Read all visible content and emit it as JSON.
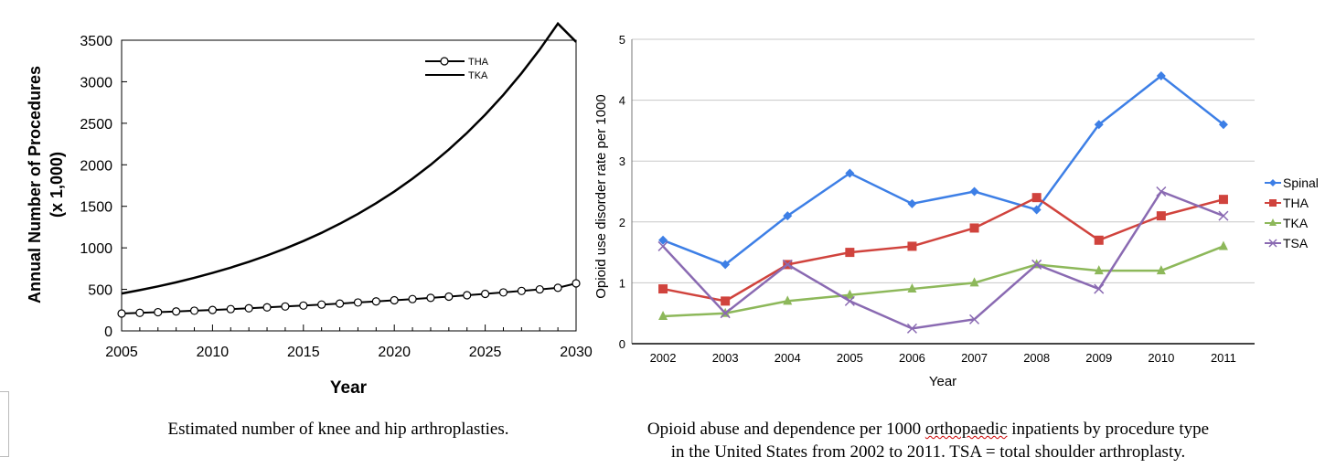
{
  "chart_data": [
    {
      "type": "line",
      "title": "",
      "xlabel": "Year",
      "ylabel": "Annual Number of Procedures",
      "ylabel2": "(x 1,000)",
      "xlim": [
        2005,
        2030
      ],
      "ylim": [
        0,
        3500
      ],
      "xticks": [
        "2005",
        "2010",
        "2015",
        "2020",
        "2025",
        "2030"
      ],
      "yticks": [
        "0",
        "500",
        "1000",
        "1500",
        "2000",
        "2500",
        "3000",
        "3500"
      ],
      "legend": "top-center",
      "grid": false,
      "x": [
        2005,
        2006,
        2007,
        2008,
        2009,
        2010,
        2011,
        2012,
        2013,
        2014,
        2015,
        2016,
        2017,
        2018,
        2019,
        2020,
        2021,
        2022,
        2023,
        2024,
        2025,
        2026,
        2027,
        2028,
        2029,
        2030
      ],
      "series": [
        {
          "name": "THA",
          "marker": "open-circle",
          "color": "#000000",
          "values": [
            209,
            217,
            225,
            234,
            243,
            252,
            262,
            272,
            283,
            294,
            305,
            317,
            329,
            342,
            355,
            369,
            383,
            398,
            413,
            429,
            446,
            463,
            481,
            500,
            519,
            572
          ]
        },
        {
          "name": "TKA",
          "marker": "none",
          "color": "#000000",
          "values": [
            450,
            491,
            536,
            585,
            639,
            698,
            762,
            832,
            908,
            991,
            1082,
            1181,
            1290,
            1408,
            1537,
            1678,
            1832,
            2000,
            2184,
            2384,
            2603,
            2842,
            3103,
            3388,
            3700,
            3480
          ]
        }
      ]
    },
    {
      "type": "line",
      "title": "",
      "xlabel": "Year",
      "ylabel": "Opioid use disorder rate per 1000",
      "categories": [
        "2002",
        "2003",
        "2004",
        "2005",
        "2006",
        "2007",
        "2008",
        "2009",
        "2010",
        "2011"
      ],
      "ylim": [
        0,
        5
      ],
      "yticks": [
        "0",
        "1",
        "2",
        "3",
        "4",
        "5"
      ],
      "legend": "right",
      "grid": true,
      "series": [
        {
          "name": "Spinal",
          "marker": "diamond",
          "color": "#3d7fe6",
          "values": [
            1.7,
            1.3,
            2.1,
            2.8,
            2.3,
            2.5,
            2.2,
            3.6,
            4.4,
            3.6
          ]
        },
        {
          "name": "THA",
          "marker": "square",
          "color": "#d0433d",
          "values": [
            0.9,
            0.7,
            1.3,
            1.5,
            1.6,
            1.9,
            2.4,
            1.7,
            2.1,
            2.37
          ]
        },
        {
          "name": "TKA",
          "marker": "triangle",
          "color": "#8db85a",
          "values": [
            0.45,
            0.5,
            0.7,
            0.8,
            0.9,
            1.0,
            1.3,
            1.2,
            1.2,
            1.6
          ]
        },
        {
          "name": "TSA",
          "marker": "x",
          "color": "#8a6ab2",
          "values": [
            1.6,
            0.5,
            1.3,
            0.7,
            0.25,
            0.4,
            1.3,
            0.9,
            2.5,
            2.1
          ]
        }
      ]
    }
  ],
  "captions": {
    "left": "Estimated number of knee and hip arthroplasties.",
    "right_line1_a": "Opioid abuse and dependence per 1000 ",
    "right_line1_b": "orthopaedic",
    "right_line1_c": " inpatients by procedure type",
    "right_line2": "in the United States from 2002 to 2011. TSA = total shoulder arthroplasty."
  }
}
